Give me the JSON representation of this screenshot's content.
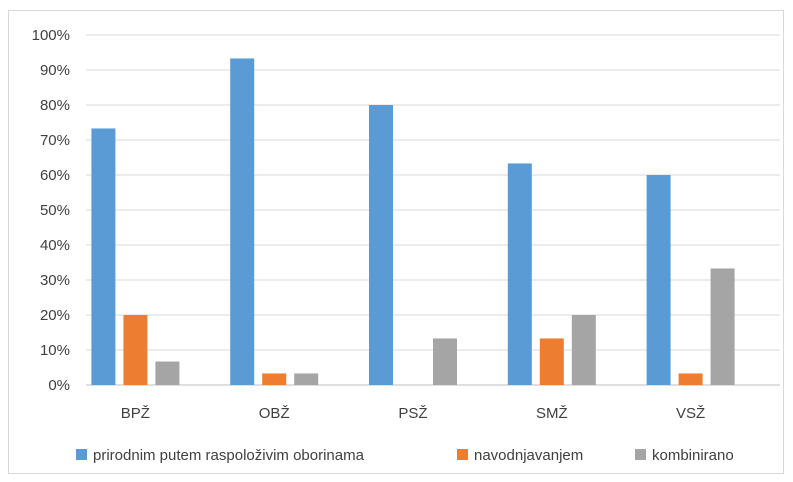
{
  "chart_data": {
    "type": "bar",
    "categories": [
      "BPŽ",
      "OBŽ",
      "PSŽ",
      "SMŽ",
      "VSŽ"
    ],
    "series": [
      {
        "name": "prirodnim putem raspoloživim oborinama",
        "color": "#5b9bd5",
        "values": [
          73.3,
          93.3,
          80,
          63.3,
          60
        ]
      },
      {
        "name": "navodnjavanjem",
        "color": "#ed7d31",
        "values": [
          20,
          3.3,
          0,
          13.3,
          3.3
        ]
      },
      {
        "name": "kombinirano",
        "color": "#a5a5a5",
        "values": [
          6.7,
          3.3,
          13.3,
          20,
          33.3
        ]
      }
    ],
    "ylim": [
      0,
      100
    ],
    "yticks": [
      0,
      10,
      20,
      30,
      40,
      50,
      60,
      70,
      80,
      90,
      100
    ],
    "ytick_labels": [
      "0%",
      "10%",
      "20%",
      "30%",
      "40%",
      "50%",
      "60%",
      "70%",
      "80%",
      "90%",
      "100%"
    ],
    "grid": true,
    "legend": "bottom"
  }
}
